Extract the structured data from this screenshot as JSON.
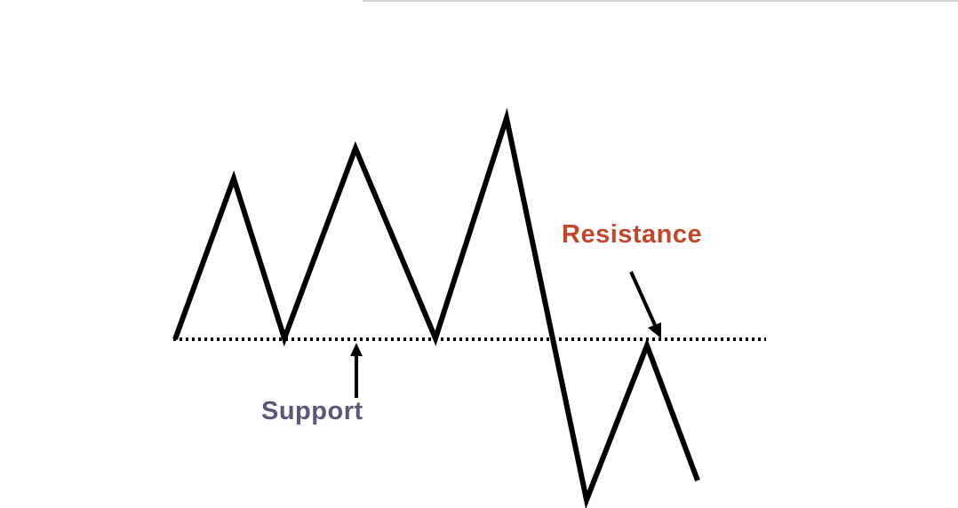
{
  "diagram": {
    "labels": {
      "resistance": "Resistance",
      "support": "Support"
    },
    "colors": {
      "price_line": "#000000",
      "level_line": "#000000",
      "resistance_text": "#c2462a",
      "support_text": "#5a5878",
      "arrow": "#000000"
    }
  }
}
